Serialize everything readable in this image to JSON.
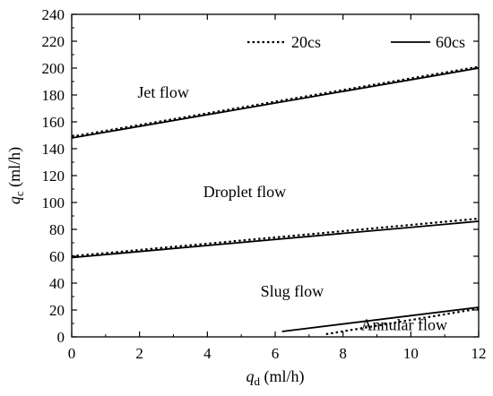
{
  "chart_data": {
    "type": "line",
    "title": "",
    "xlabel": {
      "var": "q",
      "sub": "d",
      "unit": " (ml/h)"
    },
    "ylabel": {
      "var": "q",
      "sub": "c",
      "unit": " (ml/h)"
    },
    "xlim": [
      0,
      12
    ],
    "ylim": [
      0,
      240
    ],
    "xticks": [
      0,
      2,
      4,
      6,
      8,
      10,
      12
    ],
    "yticks": [
      0,
      20,
      40,
      60,
      80,
      100,
      120,
      140,
      160,
      180,
      200,
      220,
      240
    ],
    "grid": false,
    "legend": "top",
    "series": [
      {
        "name": "20cs",
        "style": "dotted",
        "color": "#000000",
        "segments": [
          {
            "x": [
              0,
              12
            ],
            "y": [
              149,
              201
            ]
          },
          {
            "x": [
              0,
              12
            ],
            "y": [
              60,
              88
            ]
          },
          {
            "x": [
              7.5,
              12
            ],
            "y": [
              2,
              21
            ]
          }
        ]
      },
      {
        "name": "60cs",
        "style": "solid",
        "color": "#000000",
        "segments": [
          {
            "x": [
              0,
              12
            ],
            "y": [
              148,
              200
            ]
          },
          {
            "x": [
              0,
              12
            ],
            "y": [
              59,
              86
            ]
          },
          {
            "x": [
              6.2,
              12
            ],
            "y": [
              4,
              22
            ]
          }
        ]
      }
    ],
    "annotations": [
      {
        "text": "Jet flow",
        "x": 2.7,
        "y": 178
      },
      {
        "text": "Droplet flow",
        "x": 5.1,
        "y": 104
      },
      {
        "text": "Slug flow",
        "x": 6.5,
        "y": 30
      },
      {
        "text": "Annular flow",
        "x": 9.8,
        "y": 5
      }
    ]
  }
}
